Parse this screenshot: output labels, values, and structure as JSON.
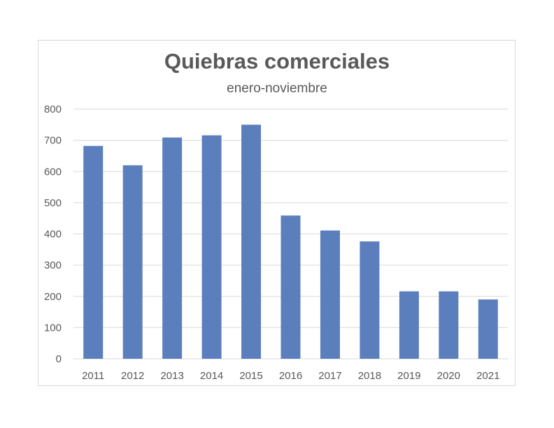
{
  "chart_data": {
    "type": "bar",
    "title": "Quiebras comerciales",
    "subtitle": "enero-noviembre",
    "xlabel": "",
    "ylabel": "",
    "categories": [
      "2011",
      "2012",
      "2013",
      "2014",
      "2015",
      "2016",
      "2017",
      "2018",
      "2019",
      "2020",
      "2021"
    ],
    "values": [
      682,
      620,
      709,
      716,
      750,
      459,
      411,
      376,
      216,
      216,
      190
    ],
    "ylim": [
      0,
      800
    ],
    "yticks": [
      "0",
      "100",
      "200",
      "300",
      "400",
      "500",
      "600",
      "700",
      "800"
    ],
    "grid": true,
    "legend": "none",
    "bar_color": "#5b7fbd",
    "grid_color": "#d9d9d9"
  }
}
